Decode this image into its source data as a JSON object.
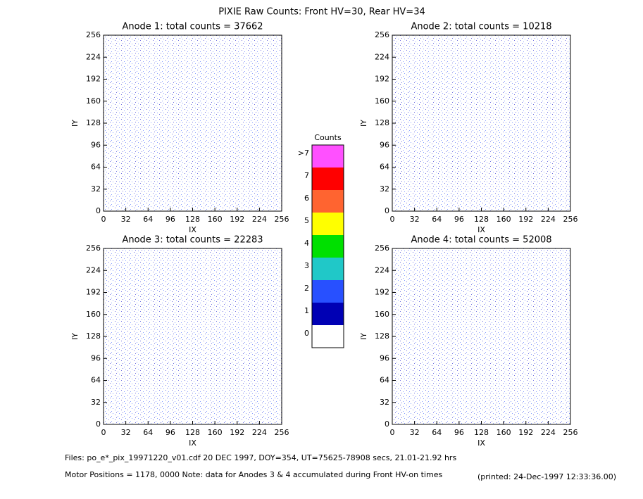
{
  "title": "PIXIE Raw Counts:  Front HV=30, Rear HV=34",
  "chart_data": [
    {
      "type": "heatmap",
      "title": "Anode 1: total counts = 37662",
      "xlabel": "IX",
      "ylabel": "IY",
      "xlim": [
        0,
        256
      ],
      "ylim": [
        0,
        256
      ],
      "xticks": [
        0,
        32,
        64,
        96,
        128,
        160,
        192,
        224,
        256
      ],
      "yticks": [
        0,
        32,
        64,
        96,
        128,
        160,
        192,
        224,
        256
      ]
    },
    {
      "type": "heatmap",
      "title": "Anode 2: total counts = 10218",
      "xlabel": "IX",
      "ylabel": "IY",
      "xlim": [
        0,
        256
      ],
      "ylim": [
        0,
        256
      ],
      "xticks": [
        0,
        32,
        64,
        96,
        128,
        160,
        192,
        224,
        256
      ],
      "yticks": [
        0,
        32,
        64,
        96,
        128,
        160,
        192,
        224,
        256
      ]
    },
    {
      "type": "heatmap",
      "title": "Anode 3: total counts = 22283",
      "xlabel": "IX",
      "ylabel": "IY",
      "xlim": [
        0,
        256
      ],
      "ylim": [
        0,
        256
      ],
      "xticks": [
        0,
        32,
        64,
        96,
        128,
        160,
        192,
        224,
        256
      ],
      "yticks": [
        0,
        32,
        64,
        96,
        128,
        160,
        192,
        224,
        256
      ]
    },
    {
      "type": "heatmap",
      "title": "Anode 4: total counts = 52008",
      "xlabel": "IX",
      "ylabel": "IY",
      "xlim": [
        0,
        256
      ],
      "ylim": [
        0,
        256
      ],
      "xticks": [
        0,
        32,
        64,
        96,
        128,
        160,
        192,
        224,
        256
      ],
      "yticks": [
        0,
        32,
        64,
        96,
        128,
        160,
        192,
        224,
        256
      ]
    }
  ],
  "colorbar": {
    "title": "Counts",
    "levels": [
      0,
      1,
      2,
      3,
      4,
      5,
      6,
      7
    ],
    "overflow_label": ">7",
    "colors": [
      "#ffffff",
      "#0000b4",
      "#2850ff",
      "#20c8c8",
      "#00e000",
      "#ffff00",
      "#ff6430",
      "#ff0000",
      "#ff50ff"
    ]
  },
  "footer": {
    "files": "Files: po_e*_pix_19971220_v01.cdf    20 DEC 1997, DOY=354, UT=75625-78908 secs, 21.01-21.92 hrs",
    "motor": "Motor Positions = 1178, 0000    Note: data for Anodes 3 & 4 accumulated during Front HV-on times",
    "printed": "(printed: 24-Dec-1997 12:33:36.00)"
  }
}
